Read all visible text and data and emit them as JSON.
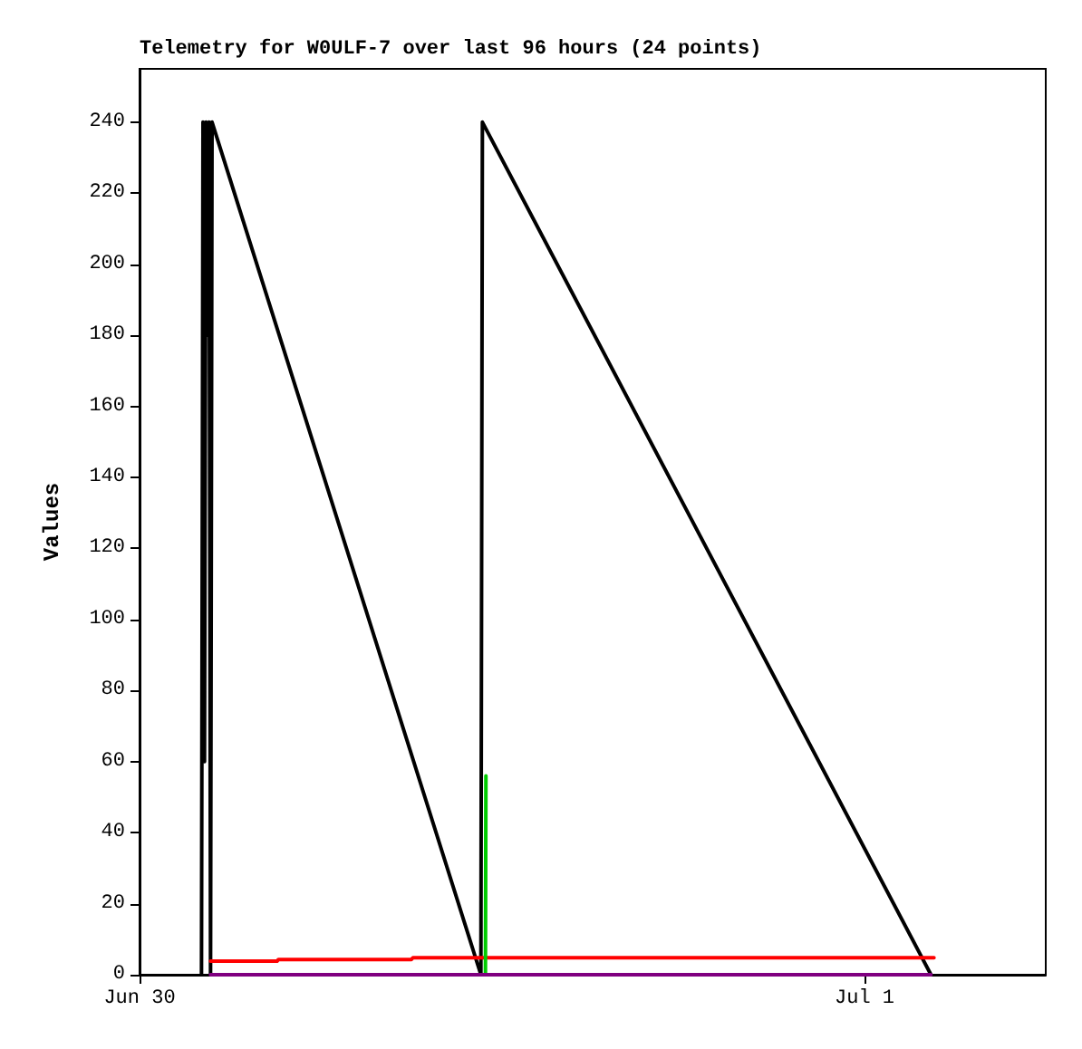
{
  "chart_data": {
    "type": "line",
    "title": "Telemetry for W0ULF-7 over last 96 hours (24 points)",
    "ylabel": "Values",
    "xlim": [
      "--06-30T00:00",
      "--07-01T06:00"
    ],
    "xticks": [
      {
        "value": "--06-30",
        "label": "Jun 30"
      },
      {
        "value": "--07-01",
        "label": "Jul 1"
      }
    ],
    "ylim": [
      0,
      255
    ],
    "yticks": [
      0,
      20,
      40,
      60,
      80,
      100,
      120,
      140,
      160,
      180,
      200,
      220,
      240
    ],
    "grid": false,
    "marker": "none",
    "line_style": "solid",
    "series": [
      {
        "color": "#000000",
        "x": [
          "--06-30T02:03",
          "--06-30T02:06",
          "--06-30T02:09",
          "--06-30T02:12",
          "--06-30T02:15",
          "--06-30T02:18",
          "--06-30T02:21",
          "--06-30T02:24",
          "--06-30T11:18",
          "--06-30T11:21",
          "--07-01T02:12"
        ],
        "values": [
          0,
          240,
          60,
          240,
          180,
          240,
          0,
          240,
          0,
          240,
          0
        ]
      },
      {
        "color": "#ff0000",
        "x": [
          "--06-30T02:21",
          "--06-30T04:33",
          "--06-30T04:36",
          "--06-30T09:00",
          "--06-30T09:03",
          "--07-01T02:18"
        ],
        "values": [
          3.8,
          3.8,
          4.3,
          4.3,
          4.8,
          4.8
        ]
      },
      {
        "color": "#00cc00",
        "x": [
          "--06-30T11:27",
          "--06-30T11:28"
        ],
        "values": [
          0,
          56
        ]
      },
      {
        "color": "#800080",
        "x": [
          "--06-30T02:21",
          "--07-01T02:12"
        ],
        "values": [
          0,
          0
        ]
      }
    ]
  }
}
